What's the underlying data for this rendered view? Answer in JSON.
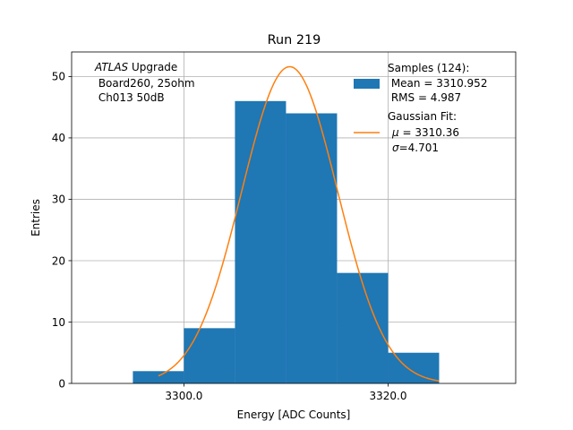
{
  "chart_data": {
    "type": "bar",
    "title": "Run 219",
    "xlabel": "Energy [ADC Counts]",
    "ylabel": "Entries",
    "xlim": [
      3289,
      3332.5
    ],
    "ylim": [
      0,
      54
    ],
    "grid": true,
    "x_ticks": [
      3300.0,
      3320.0
    ],
    "x_tick_labels": [
      "3300.0",
      "3320.0"
    ],
    "y_ticks": [
      0,
      10,
      20,
      30,
      40,
      50
    ],
    "y_tick_labels": [
      "0",
      "10",
      "20",
      "30",
      "40",
      "50"
    ],
    "histogram": {
      "bin_edges": [
        3295,
        3300,
        3305,
        3310,
        3315,
        3320,
        3325
      ],
      "counts": [
        2,
        9,
        46,
        44,
        18,
        5
      ],
      "color": "#1f77b4"
    },
    "fit": {
      "type": "gaussian",
      "mu": 3310.36,
      "sigma": 4.701,
      "amplitude": 51.6,
      "x_range": [
        3297.5,
        3325
      ],
      "color": "#ff7f0e"
    },
    "annotation": {
      "lines": [
        {
          "italic": "ATLAS",
          "text": " Upgrade"
        },
        {
          "italic": "",
          "text": " Board260, 25ohm"
        },
        {
          "italic": "",
          "text": " Ch013 50dB"
        }
      ]
    },
    "legend": {
      "position": "top-right",
      "entries": [
        {
          "kind": "patch",
          "lines": [
            "Samples (124):",
            " Mean = 3310.952",
            " RMS = 4.987"
          ]
        },
        {
          "kind": "line",
          "lines": [
            "Gaussian Fit:"
          ],
          "mu_line": "= 3310.36",
          "sigma_line": "=4.701"
        }
      ]
    }
  }
}
